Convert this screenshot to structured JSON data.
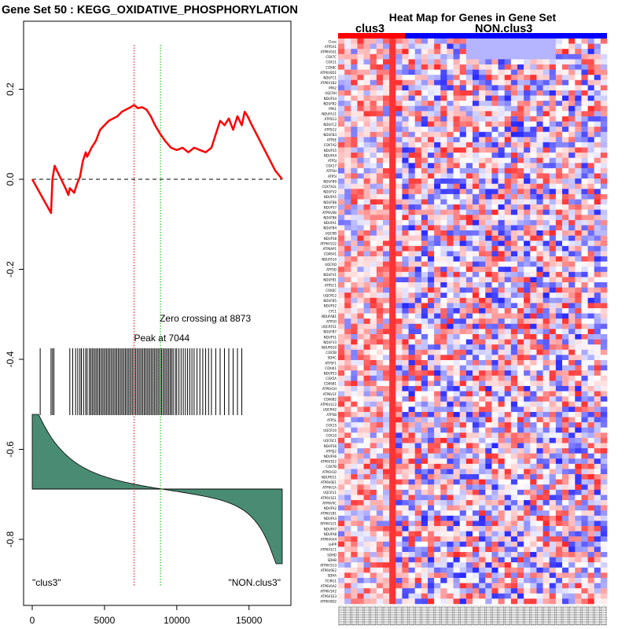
{
  "chart_data": [
    {
      "type": "line",
      "title": "Gene Set  50 : KEGG_OXIDATIVE_PHOSPHORYLATION",
      "xlim": [
        0,
        17300
      ],
      "ylim": [
        -0.9,
        0.3
      ],
      "x_ticks": [
        0,
        5000,
        10000,
        15000
      ],
      "x_tick_labels": [
        "0",
        "5000",
        "10000",
        "15000"
      ],
      "y_ticks": [
        0.2,
        0.0,
        -0.2,
        -0.4,
        -0.6,
        -0.8
      ],
      "y_tick_labels": [
        "0.2",
        "0.0",
        "-0.2",
        "-0.4",
        "-0.6",
        "-0.8"
      ],
      "zero_line": 0.0,
      "running_es": {
        "x": [
          0,
          1300,
          1400,
          1550,
          1700,
          2000,
          2300,
          2500,
          2600,
          2900,
          3100,
          3300,
          3500,
          3700,
          3800,
          4100,
          4400,
          4700,
          5000,
          5300,
          5600,
          5900,
          6200,
          6500,
          6800,
          7044,
          7300,
          7600,
          7900,
          8200,
          8500,
          8873,
          9200,
          9600,
          10000,
          10400,
          10800,
          11200,
          11600,
          12000,
          12400,
          12700,
          13000,
          13300,
          13600,
          13900,
          14200,
          14500,
          14700,
          14900,
          15200,
          15600,
          16000,
          16400,
          16800,
          17300
        ],
        "y": [
          0.0,
          -0.075,
          0.0,
          0.03,
          0.02,
          0.0,
          -0.02,
          -0.035,
          -0.02,
          -0.03,
          -0.01,
          0.005,
          0.04,
          0.06,
          0.05,
          0.07,
          0.085,
          0.11,
          0.12,
          0.13,
          0.135,
          0.14,
          0.15,
          0.155,
          0.16,
          0.165,
          0.158,
          0.16,
          0.155,
          0.14,
          0.12,
          0.1,
          0.085,
          0.07,
          0.065,
          0.07,
          0.06,
          0.07,
          0.065,
          0.06,
          0.07,
          0.1,
          0.13,
          0.12,
          0.135,
          0.11,
          0.14,
          0.12,
          0.15,
          0.14,
          0.12,
          0.095,
          0.07,
          0.045,
          0.02,
          0.0
        ]
      },
      "color": "#ff0000",
      "peak_x": 7044,
      "peak_label": "Peak at 7044",
      "zero_crossing_x": 8873,
      "zero_crossing_label": "Zero crossing at 8873",
      "hit_positions": [
        550,
        1300,
        1400,
        1500,
        2600,
        2800,
        3000,
        3150,
        3300,
        3400,
        3550,
        3700,
        3800,
        3950,
        4050,
        4150,
        4250,
        4350,
        4450,
        4550,
        4650,
        4750,
        4850,
        4950,
        5050,
        5150,
        5250,
        5350,
        5450,
        5550,
        5650,
        5750,
        5850,
        5950,
        6050,
        6150,
        6250,
        6350,
        6450,
        6550,
        6650,
        6750,
        6850,
        6950,
        7050,
        7150,
        7250,
        7350,
        7450,
        7550,
        7650,
        7750,
        7850,
        7950,
        8050,
        8150,
        8250,
        8350,
        8450,
        8550,
        8650,
        8750,
        8850,
        8950,
        9050,
        9150,
        9250,
        9350,
        9450,
        9550,
        9650,
        9750,
        9900,
        10000,
        10150,
        10300,
        10450,
        10600,
        10750,
        10900,
        11050,
        11200,
        11400,
        11600,
        11800,
        12000,
        12200,
        12400,
        12700,
        13000,
        13300,
        13600,
        13900,
        14200,
        14500
      ],
      "ranked_metric_label_left": "\"clus3\"",
      "ranked_metric_label_right": "\"NON.clus3\""
    },
    {
      "type": "heatmap",
      "title": "Heat Map for Genes in Gene Set",
      "group_labels": [
        "clus3",
        "NON.clus3"
      ],
      "group_colors": [
        "#ff0000",
        "#0000ff"
      ],
      "n_clus3_columns": 9,
      "n_total_columns": 42,
      "gene_labels": [
        "Class",
        "ATP5A1",
        "ATP6V0A1",
        "COX7C",
        "COX11",
        "COX8C",
        "ATP6V0D1",
        "NDUFC1",
        "ATP6V1B2",
        "PPA2",
        "UQCRH",
        "NDUFS4",
        "NDUFB2",
        "PPA1",
        "NDUFA11",
        "ATP5G3",
        "NDUFC2",
        "ATP5G2",
        "NDUFB3",
        "ATP5E",
        "COX7A2",
        "NDUFS5",
        "NDUFA4",
        "ATP5J",
        "COX17",
        "ATP5H",
        "ATP5I",
        "NDUFB9",
        "COX7A2L",
        "NDUFV2",
        "NDUFA5",
        "NDUFB8",
        "NDUFS7",
        "ATP6V0B",
        "NDUFB6",
        "NDUFA1",
        "NDUFB4",
        "UQCRB",
        "NDUFS8",
        "ATP6V1G2",
        "ATP6AP1",
        "COX6A1",
        "NDUFA10",
        "UQCRQ",
        "ATP5D",
        "NDUFV1",
        "NDUFB1",
        "ATP5C1",
        "COX6C",
        "UQCRC2",
        "NDUFB5",
        "NDUFS2",
        "CYC1",
        "NDUFAB1",
        "ATP5O",
        "UQCRFS1",
        "NDUFB7",
        "NDUFS1",
        "NDUFV3",
        "NDUFB10",
        "COX5B",
        "SDHC",
        "ATP5F1",
        "COX4I1",
        "NDUFS3",
        "COX5A",
        "COX6B1",
        "ATP6V1H",
        "ATP6V1F",
        "COX6B2",
        "ATP6V1C2",
        "UQCRH2",
        "ATP5B",
        "ATP5L",
        "COX15",
        "UQCR10",
        "COX10",
        "UQCRC1",
        "NDUFS6",
        "ATP5J2",
        "NDUFA6",
        "ATP6V1E2",
        "COX7B",
        "ATP6V1D",
        "NDUFB11",
        "ATP6V0E1",
        "ATP6V1A",
        "UQCR11",
        "ATP6V1E1",
        "ATP6V0C",
        "NDUFA2",
        "ATP6V1B1",
        "NDUFA3",
        "ATP6V1G1",
        "NDUFA7",
        "NDUFA8",
        "ATP6V0A4",
        "LHPP",
        "ATP6V1C1",
        "SDHD",
        "SDHB",
        "ATP6V1G3",
        "ATP6V0E2",
        "SDHA",
        "TCIRG1",
        "ATP6V0A2",
        "ATP6V1H2",
        "ATP6V1E3",
        "ATP6V0D2"
      ]
    }
  ]
}
